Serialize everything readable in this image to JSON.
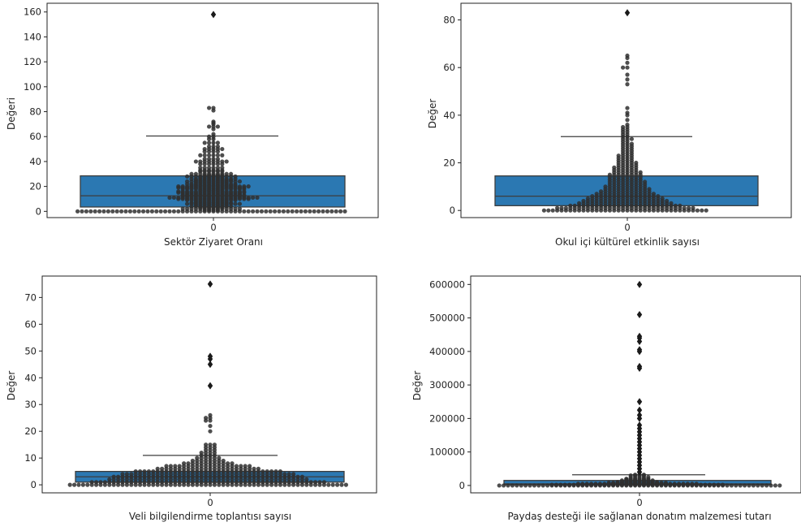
{
  "colors": {
    "box": "#2b78b2",
    "median": "#3d3d3d",
    "dots": "#2f2f2f",
    "outlier": "#1a1a1a",
    "frame": "#222222"
  },
  "chart_data": [
    {
      "type": "box",
      "xlabel": "Sektör Ziyaret Oranı",
      "ylabel": "Değeri",
      "xtick": "0",
      "ylim": [
        -5,
        167
      ],
      "yticks": [
        0,
        20,
        40,
        60,
        80,
        100,
        120,
        140,
        160
      ],
      "box": {
        "q1": 3.5,
        "median": 12.5,
        "q3": 28.5,
        "whisker_low": 0,
        "whisker_high": 60.5
      },
      "swarm": [
        [
          0,
          62
        ],
        [
          1,
          4
        ],
        [
          2,
          14
        ],
        [
          3,
          6
        ],
        [
          4,
          10
        ],
        [
          5,
          8
        ],
        [
          6,
          13
        ],
        [
          7,
          10
        ],
        [
          8,
          8
        ],
        [
          9,
          12
        ],
        [
          10,
          17
        ],
        [
          11,
          21
        ],
        [
          12,
          15
        ],
        [
          13,
          15
        ],
        [
          14,
          14
        ],
        [
          15,
          16
        ],
        [
          16,
          16
        ],
        [
          17,
          6
        ],
        [
          18,
          15
        ],
        [
          19,
          16
        ],
        [
          20,
          17
        ],
        [
          21,
          11
        ],
        [
          22,
          12
        ],
        [
          23,
          8
        ],
        [
          24,
          13
        ],
        [
          25,
          9
        ],
        [
          26,
          11
        ],
        [
          27,
          6
        ],
        [
          28,
          12
        ],
        [
          29,
          5
        ],
        [
          30,
          10
        ],
        [
          32,
          6
        ],
        [
          33,
          6
        ],
        [
          35,
          6
        ],
        [
          38,
          6
        ],
        [
          40,
          8
        ],
        [
          42,
          4
        ],
        [
          45,
          6
        ],
        [
          48,
          4
        ],
        [
          50,
          5
        ],
        [
          52,
          3
        ],
        [
          55,
          4
        ],
        [
          58,
          2
        ],
        [
          60,
          2
        ],
        [
          62,
          1
        ],
        [
          66,
          1
        ],
        [
          68,
          3
        ],
        [
          70,
          1
        ],
        [
          71,
          1
        ],
        [
          72,
          1
        ],
        [
          81,
          1
        ],
        [
          83,
          2
        ]
      ],
      "outliers": [
        158
      ]
    },
    {
      "type": "box",
      "xlabel": "Okul içi kültürel etkinlik sayısı",
      "ylabel": "Değer",
      "xtick": "0",
      "ylim": [
        -3,
        87
      ],
      "yticks": [
        0,
        20,
        40,
        60,
        80
      ],
      "box": {
        "q1": 2,
        "median": 6,
        "q3": 14.5,
        "whisker_low": 0,
        "whisker_high": 31
      },
      "swarm": [
        [
          0,
          38
        ],
        [
          1,
          32
        ],
        [
          2,
          26
        ],
        [
          3,
          22
        ],
        [
          4,
          20
        ],
        [
          5,
          18
        ],
        [
          6,
          16
        ],
        [
          7,
          14
        ],
        [
          8,
          12
        ],
        [
          9,
          11
        ],
        [
          10,
          10
        ],
        [
          11,
          9
        ],
        [
          12,
          9
        ],
        [
          13,
          8
        ],
        [
          14,
          8
        ],
        [
          15,
          8
        ],
        [
          16,
          7
        ],
        [
          17,
          6
        ],
        [
          18,
          6
        ],
        [
          19,
          5
        ],
        [
          20,
          5
        ],
        [
          21,
          4
        ],
        [
          22,
          4
        ],
        [
          23,
          4
        ],
        [
          24,
          3
        ],
        [
          25,
          3
        ],
        [
          26,
          3
        ],
        [
          27,
          3
        ],
        [
          28,
          3
        ],
        [
          29,
          2
        ],
        [
          30,
          3
        ],
        [
          31,
          2
        ],
        [
          32,
          2
        ],
        [
          33,
          2
        ],
        [
          34,
          2
        ],
        [
          35,
          2
        ],
        [
          36,
          1
        ],
        [
          38,
          1
        ],
        [
          40,
          1
        ],
        [
          41,
          1
        ],
        [
          43,
          1
        ],
        [
          53,
          1
        ],
        [
          55,
          1
        ],
        [
          57,
          1
        ],
        [
          60,
          2
        ],
        [
          62,
          1
        ],
        [
          64,
          1
        ],
        [
          65,
          1
        ]
      ],
      "outliers": [
        83
      ]
    },
    {
      "type": "box",
      "xlabel": "Veli bilgilendirme toplantısı sayısı",
      "ylabel": "Değer",
      "xtick": "0",
      "ylim": [
        -3,
        78
      ],
      "yticks": [
        0,
        10,
        20,
        30,
        40,
        50,
        60,
        70
      ],
      "box": {
        "q1": 1,
        "median": 3,
        "q3": 5,
        "whisker_low": 0,
        "whisker_high": 11
      },
      "swarm": [
        [
          0,
          64
        ],
        [
          1,
          54
        ],
        [
          2,
          46
        ],
        [
          3,
          44
        ],
        [
          4,
          40
        ],
        [
          5,
          34
        ],
        [
          6,
          24
        ],
        [
          7,
          20
        ],
        [
          8,
          12
        ],
        [
          9,
          8
        ],
        [
          10,
          6
        ],
        [
          11,
          4
        ],
        [
          12,
          4
        ],
        [
          13,
          3
        ],
        [
          14,
          3
        ],
        [
          15,
          3
        ],
        [
          20,
          1
        ],
        [
          22,
          1
        ],
        [
          24,
          2
        ],
        [
          25,
          2
        ],
        [
          26,
          1
        ]
      ],
      "outliers": [
        37,
        45,
        47,
        48,
        75
      ]
    },
    {
      "type": "box",
      "xlabel": "Paydaş desteği ile sağlanan donatım malzemesi tutarı",
      "ylabel": "Değer",
      "xtick": "0",
      "ylim": [
        -22000,
        625000
      ],
      "yticks": [
        0,
        100000,
        200000,
        300000,
        400000,
        500000,
        600000
      ],
      "box": {
        "q1": 2000,
        "median": 5000,
        "q3": 15000,
        "whisker_low": 0,
        "whisker_high": 32000
      },
      "swarm": [
        [
          0,
          70
        ],
        [
          2000,
          40
        ],
        [
          5000,
          28
        ],
        [
          8000,
          14
        ],
        [
          10000,
          10
        ],
        [
          12000,
          8
        ],
        [
          15000,
          8
        ],
        [
          18000,
          6
        ],
        [
          20000,
          6
        ],
        [
          25000,
          5
        ],
        [
          30000,
          4
        ],
        [
          32000,
          3
        ]
      ],
      "outliers": [
        40000,
        50000,
        60000,
        70000,
        80000,
        90000,
        100000,
        110000,
        120000,
        130000,
        140000,
        150000,
        160000,
        170000,
        180000,
        200000,
        210000,
        225000,
        250000,
        350000,
        355000,
        400000,
        405000,
        430000,
        440000,
        445000,
        510000,
        600000
      ]
    }
  ]
}
